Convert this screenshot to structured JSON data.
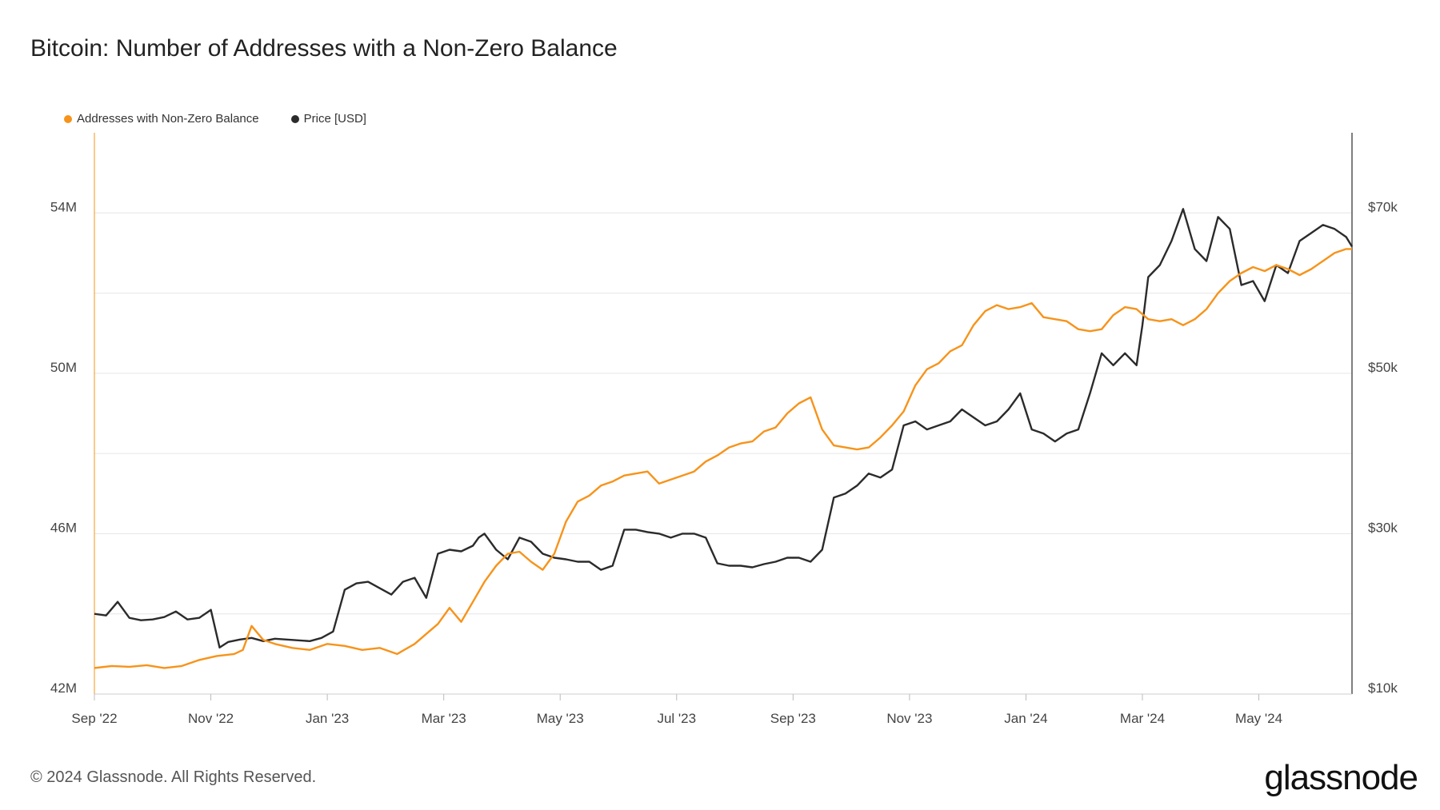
{
  "title": "Bitcoin: Number of Addresses with a Non-Zero Balance",
  "footer": "© 2024 Glassnode. All Rights Reserved.",
  "brand": "glassnode",
  "colors": {
    "addresses": "#f7931a",
    "price": "#2b2b2b",
    "grid": "#e6e6e6"
  },
  "chart_data": {
    "type": "line",
    "title": "Bitcoin: Number of Addresses with a Non-Zero Balance",
    "legend_placement": "top-left",
    "grid": true,
    "x_range": [
      0,
      21.6
    ],
    "x_ticks": [
      {
        "label": "Sep '22",
        "x": 0
      },
      {
        "label": "Nov '22",
        "x": 2
      },
      {
        "label": "Jan '23",
        "x": 4
      },
      {
        "label": "Mar '23",
        "x": 6
      },
      {
        "label": "May '23",
        "x": 8
      },
      {
        "label": "Jul '23",
        "x": 10
      },
      {
        "label": "Sep '23",
        "x": 12
      },
      {
        "label": "Nov '23",
        "x": 14
      },
      {
        "label": "Jan '24",
        "x": 16
      },
      {
        "label": "Mar '24",
        "x": 18
      },
      {
        "label": "May '24",
        "x": 20
      }
    ],
    "y_left": {
      "range": [
        42,
        56
      ],
      "ticks": [
        {
          "label": "42M",
          "v": 42
        },
        {
          "label": "46M",
          "v": 46
        },
        {
          "label": "50M",
          "v": 50
        },
        {
          "label": "54M",
          "v": 54
        }
      ],
      "grid_values": [
        42,
        44,
        46,
        48,
        50,
        52,
        54
      ]
    },
    "y_right": {
      "range": [
        10,
        80
      ],
      "ticks": [
        {
          "label": "$10k",
          "v": 10
        },
        {
          "label": "$30k",
          "v": 30
        },
        {
          "label": "$50k",
          "v": 50
        },
        {
          "label": "$70k",
          "v": 70
        }
      ]
    },
    "series": [
      {
        "name": "Addresses with Non-Zero Balance",
        "axis": "left",
        "unit": "M",
        "x": [
          0,
          0.3,
          0.6,
          0.9,
          1.2,
          1.5,
          1.8,
          2.1,
          2.4,
          2.55,
          2.7,
          2.9,
          3.1,
          3.4,
          3.7,
          4,
          4.3,
          4.6,
          4.9,
          5.2,
          5.5,
          5.7,
          5.9,
          6.1,
          6.3,
          6.5,
          6.7,
          6.9,
          7.1,
          7.3,
          7.5,
          7.7,
          7.9,
          8.1,
          8.3,
          8.5,
          8.7,
          8.9,
          9.1,
          9.3,
          9.5,
          9.7,
          9.9,
          10.1,
          10.3,
          10.5,
          10.7,
          10.9,
          11.1,
          11.3,
          11.5,
          11.7,
          11.9,
          12.1,
          12.3,
          12.5,
          12.7,
          12.9,
          13.1,
          13.3,
          13.5,
          13.7,
          13.9,
          14.1,
          14.3,
          14.5,
          14.7,
          14.9,
          15.1,
          15.3,
          15.5,
          15.7,
          15.9,
          16.1,
          16.3,
          16.5,
          16.7,
          16.9,
          17.1,
          17.3,
          17.5,
          17.7,
          17.9,
          18.1,
          18.3,
          18.5,
          18.7,
          18.9,
          19.1,
          19.3,
          19.5,
          19.7,
          19.9,
          20.1,
          20.3,
          20.5,
          20.7,
          20.9,
          21.1,
          21.3,
          21.5,
          21.6
        ],
        "values": [
          42.65,
          42.7,
          42.68,
          42.72,
          42.65,
          42.7,
          42.85,
          42.95,
          43.0,
          43.1,
          43.7,
          43.35,
          43.25,
          43.15,
          43.1,
          43.25,
          43.2,
          43.1,
          43.15,
          43.0,
          43.25,
          43.5,
          43.75,
          44.15,
          43.8,
          44.3,
          44.8,
          45.2,
          45.5,
          45.55,
          45.3,
          45.1,
          45.5,
          46.3,
          46.8,
          46.95,
          47.2,
          47.3,
          47.45,
          47.5,
          47.55,
          47.25,
          47.35,
          47.45,
          47.55,
          47.8,
          47.95,
          48.15,
          48.25,
          48.3,
          48.55,
          48.65,
          49.0,
          49.25,
          49.4,
          48.6,
          48.2,
          48.15,
          48.1,
          48.15,
          48.4,
          48.7,
          49.05,
          49.7,
          50.1,
          50.25,
          50.55,
          50.7,
          51.2,
          51.55,
          51.7,
          51.6,
          51.65,
          51.75,
          51.4,
          51.35,
          51.3,
          51.1,
          51.05,
          51.1,
          51.45,
          51.65,
          51.6,
          51.35,
          51.3,
          51.35,
          51.2,
          51.35,
          51.6,
          52.0,
          52.3,
          52.5,
          52.65,
          52.55,
          52.7,
          52.6,
          52.45,
          52.6,
          52.8,
          53.0,
          53.1,
          53.1
        ]
      },
      {
        "name": "Price [USD]",
        "axis": "right",
        "unit": "USD k",
        "x": [
          0,
          0.2,
          0.4,
          0.6,
          0.8,
          1.0,
          1.2,
          1.4,
          1.6,
          1.8,
          2.0,
          2.15,
          2.3,
          2.5,
          2.7,
          2.9,
          3.1,
          3.3,
          3.5,
          3.7,
          3.9,
          4.1,
          4.3,
          4.5,
          4.7,
          4.9,
          5.1,
          5.3,
          5.5,
          5.7,
          5.9,
          6.1,
          6.3,
          6.5,
          6.6,
          6.7,
          6.9,
          7.1,
          7.3,
          7.5,
          7.7,
          7.9,
          8.1,
          8.3,
          8.5,
          8.7,
          8.9,
          9.1,
          9.3,
          9.5,
          9.7,
          9.9,
          10.1,
          10.3,
          10.5,
          10.7,
          10.9,
          11.1,
          11.3,
          11.5,
          11.7,
          11.9,
          12.1,
          12.3,
          12.5,
          12.7,
          12.9,
          13.1,
          13.3,
          13.5,
          13.7,
          13.9,
          14.1,
          14.3,
          14.5,
          14.7,
          14.9,
          15.1,
          15.3,
          15.5,
          15.7,
          15.9,
          16.1,
          16.3,
          16.5,
          16.7,
          16.9,
          17.1,
          17.3,
          17.5,
          17.7,
          17.9,
          18.0,
          18.1,
          18.3,
          18.5,
          18.7,
          18.9,
          19.1,
          19.3,
          19.5,
          19.7,
          19.9,
          20.1,
          20.3,
          20.5,
          20.7,
          20.9,
          21.1,
          21.3,
          21.5,
          21.6
        ],
        "values": [
          20,
          19.8,
          21.5,
          19.5,
          19.2,
          19.3,
          19.6,
          20.3,
          19.3,
          19.5,
          20.5,
          15.8,
          16.5,
          16.8,
          17.0,
          16.6,
          16.9,
          16.8,
          16.7,
          16.6,
          17.0,
          17.8,
          23.0,
          23.8,
          24.0,
          23.2,
          22.4,
          24.0,
          24.5,
          22.0,
          27.5,
          28.0,
          27.8,
          28.5,
          29.5,
          30.0,
          28.0,
          26.8,
          29.5,
          29.0,
          27.5,
          27.0,
          26.8,
          26.5,
          26.5,
          25.5,
          26.0,
          30.5,
          30.5,
          30.2,
          30.0,
          29.5,
          30.0,
          30.0,
          29.5,
          26.3,
          26.0,
          26.0,
          25.8,
          26.2,
          26.5,
          27.0,
          27.0,
          26.5,
          28.0,
          34.5,
          35.0,
          36.0,
          37.5,
          37.0,
          38.0,
          43.5,
          44.0,
          43.0,
          43.5,
          44.0,
          45.5,
          44.5,
          43.5,
          44.0,
          45.5,
          47.5,
          43.0,
          42.5,
          41.5,
          42.5,
          43.0,
          47.5,
          52.5,
          51.0,
          52.5,
          51.0,
          56.0,
          62.0,
          63.5,
          66.5,
          70.5,
          65.5,
          64.0,
          69.5,
          68.0,
          61.0,
          61.5,
          59.0,
          63.5,
          62.5,
          66.5,
          67.5,
          68.5,
          68.0,
          67.0,
          65.8
        ]
      }
    ]
  }
}
